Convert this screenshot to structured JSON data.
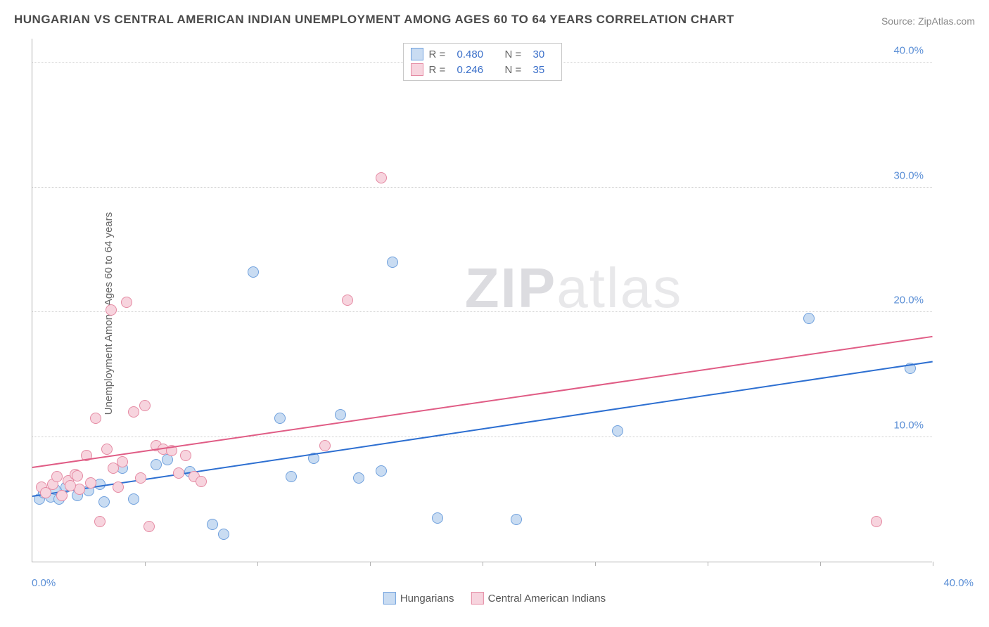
{
  "title": "HUNGARIAN VS CENTRAL AMERICAN INDIAN UNEMPLOYMENT AMONG AGES 60 TO 64 YEARS CORRELATION CHART",
  "source": "Source: ZipAtlas.com",
  "ylabel": "Unemployment Among Ages 60 to 64 years",
  "watermark_bold": "ZIP",
  "watermark_light": "atlas",
  "chart": {
    "type": "scatter",
    "xlim": [
      0,
      40
    ],
    "ylim": [
      0,
      42
    ],
    "x_start_label": "0.0%",
    "x_end_label": "40.0%",
    "y_ticks": [
      {
        "v": 10,
        "label": "10.0%"
      },
      {
        "v": 20,
        "label": "20.0%"
      },
      {
        "v": 30,
        "label": "30.0%"
      },
      {
        "v": 40,
        "label": "40.0%"
      }
    ],
    "x_tick_positions": [
      5,
      10,
      15,
      20,
      25,
      30,
      35,
      40
    ],
    "background_color": "#ffffff",
    "grid_color": "#d0d0d0",
    "axis_color": "#b0b0b0",
    "marker_radius": 8,
    "marker_border_width": 1.5,
    "series": [
      {
        "name": "Hungarians",
        "fill": "#c9dcf2",
        "stroke": "#6fa0dd",
        "line_color": "#2d6fd1",
        "r_label": "R =",
        "r_value": "0.480",
        "n_label": "N =",
        "n_value": "30",
        "trend": {
          "x1": 0,
          "y1": 5.2,
          "x2": 40,
          "y2": 16.0
        },
        "points": [
          {
            "x": 0.3,
            "y": 5.0
          },
          {
            "x": 0.5,
            "y": 5.5
          },
          {
            "x": 0.8,
            "y": 5.2
          },
          {
            "x": 1.0,
            "y": 5.8
          },
          {
            "x": 1.2,
            "y": 5.0
          },
          {
            "x": 1.5,
            "y": 6.0
          },
          {
            "x": 2.0,
            "y": 5.3
          },
          {
            "x": 2.5,
            "y": 5.7
          },
          {
            "x": 3.0,
            "y": 6.2
          },
          {
            "x": 3.2,
            "y": 4.8
          },
          {
            "x": 4.0,
            "y": 7.5
          },
          {
            "x": 4.5,
            "y": 5.0
          },
          {
            "x": 5.5,
            "y": 7.8
          },
          {
            "x": 6.0,
            "y": 8.2
          },
          {
            "x": 7.0,
            "y": 7.2
          },
          {
            "x": 8.0,
            "y": 3.0
          },
          {
            "x": 8.5,
            "y": 2.2
          },
          {
            "x": 9.8,
            "y": 23.2
          },
          {
            "x": 11.0,
            "y": 11.5
          },
          {
            "x": 11.5,
            "y": 6.8
          },
          {
            "x": 12.5,
            "y": 8.3
          },
          {
            "x": 13.7,
            "y": 11.8
          },
          {
            "x": 14.5,
            "y": 6.7
          },
          {
            "x": 15.5,
            "y": 7.3
          },
          {
            "x": 18.0,
            "y": 3.5
          },
          {
            "x": 21.5,
            "y": 3.4
          },
          {
            "x": 26.0,
            "y": 10.5
          },
          {
            "x": 34.5,
            "y": 19.5
          },
          {
            "x": 39.0,
            "y": 15.5
          },
          {
            "x": 16.0,
            "y": 24.0
          }
        ]
      },
      {
        "name": "Central American Indians",
        "fill": "#f7d4de",
        "stroke": "#e58aa3",
        "line_color": "#e05c85",
        "r_label": "R =",
        "r_value": "0.246",
        "n_label": "N =",
        "n_value": "35",
        "trend": {
          "x1": 0,
          "y1": 7.5,
          "x2": 40,
          "y2": 18.0
        },
        "points": [
          {
            "x": 0.4,
            "y": 6.0
          },
          {
            "x": 0.6,
            "y": 5.5
          },
          {
            "x": 0.9,
            "y": 6.2
          },
          {
            "x": 1.1,
            "y": 6.8
          },
          {
            "x": 1.3,
            "y": 5.3
          },
          {
            "x": 1.6,
            "y": 6.5
          },
          {
            "x": 1.9,
            "y": 7.0
          },
          {
            "x": 2.1,
            "y": 5.8
          },
          {
            "x": 2.4,
            "y": 8.5
          },
          {
            "x": 2.6,
            "y": 6.3
          },
          {
            "x": 2.8,
            "y": 11.5
          },
          {
            "x": 3.0,
            "y": 3.2
          },
          {
            "x": 3.3,
            "y": 9.0
          },
          {
            "x": 3.5,
            "y": 20.2
          },
          {
            "x": 3.6,
            "y": 7.5
          },
          {
            "x": 4.2,
            "y": 20.8
          },
          {
            "x": 4.5,
            "y": 12.0
          },
          {
            "x": 4.8,
            "y": 6.7
          },
          {
            "x": 5.0,
            "y": 12.5
          },
          {
            "x": 5.2,
            "y": 2.8
          },
          {
            "x": 5.5,
            "y": 9.3
          },
          {
            "x": 5.8,
            "y": 9.0
          },
          {
            "x": 6.2,
            "y": 8.9
          },
          {
            "x": 6.5,
            "y": 7.1
          },
          {
            "x": 7.2,
            "y": 6.8
          },
          {
            "x": 7.5,
            "y": 6.4
          },
          {
            "x": 13.0,
            "y": 9.3
          },
          {
            "x": 14.0,
            "y": 21.0
          },
          {
            "x": 15.5,
            "y": 30.8
          },
          {
            "x": 37.5,
            "y": 3.2
          },
          {
            "x": 2.0,
            "y": 6.9
          },
          {
            "x": 1.7,
            "y": 6.1
          },
          {
            "x": 4.0,
            "y": 8.0
          },
          {
            "x": 3.8,
            "y": 6.0
          },
          {
            "x": 6.8,
            "y": 8.5
          }
        ]
      }
    ]
  },
  "legend_label_1": "Hungarians",
  "legend_label_2": "Central American Indians"
}
